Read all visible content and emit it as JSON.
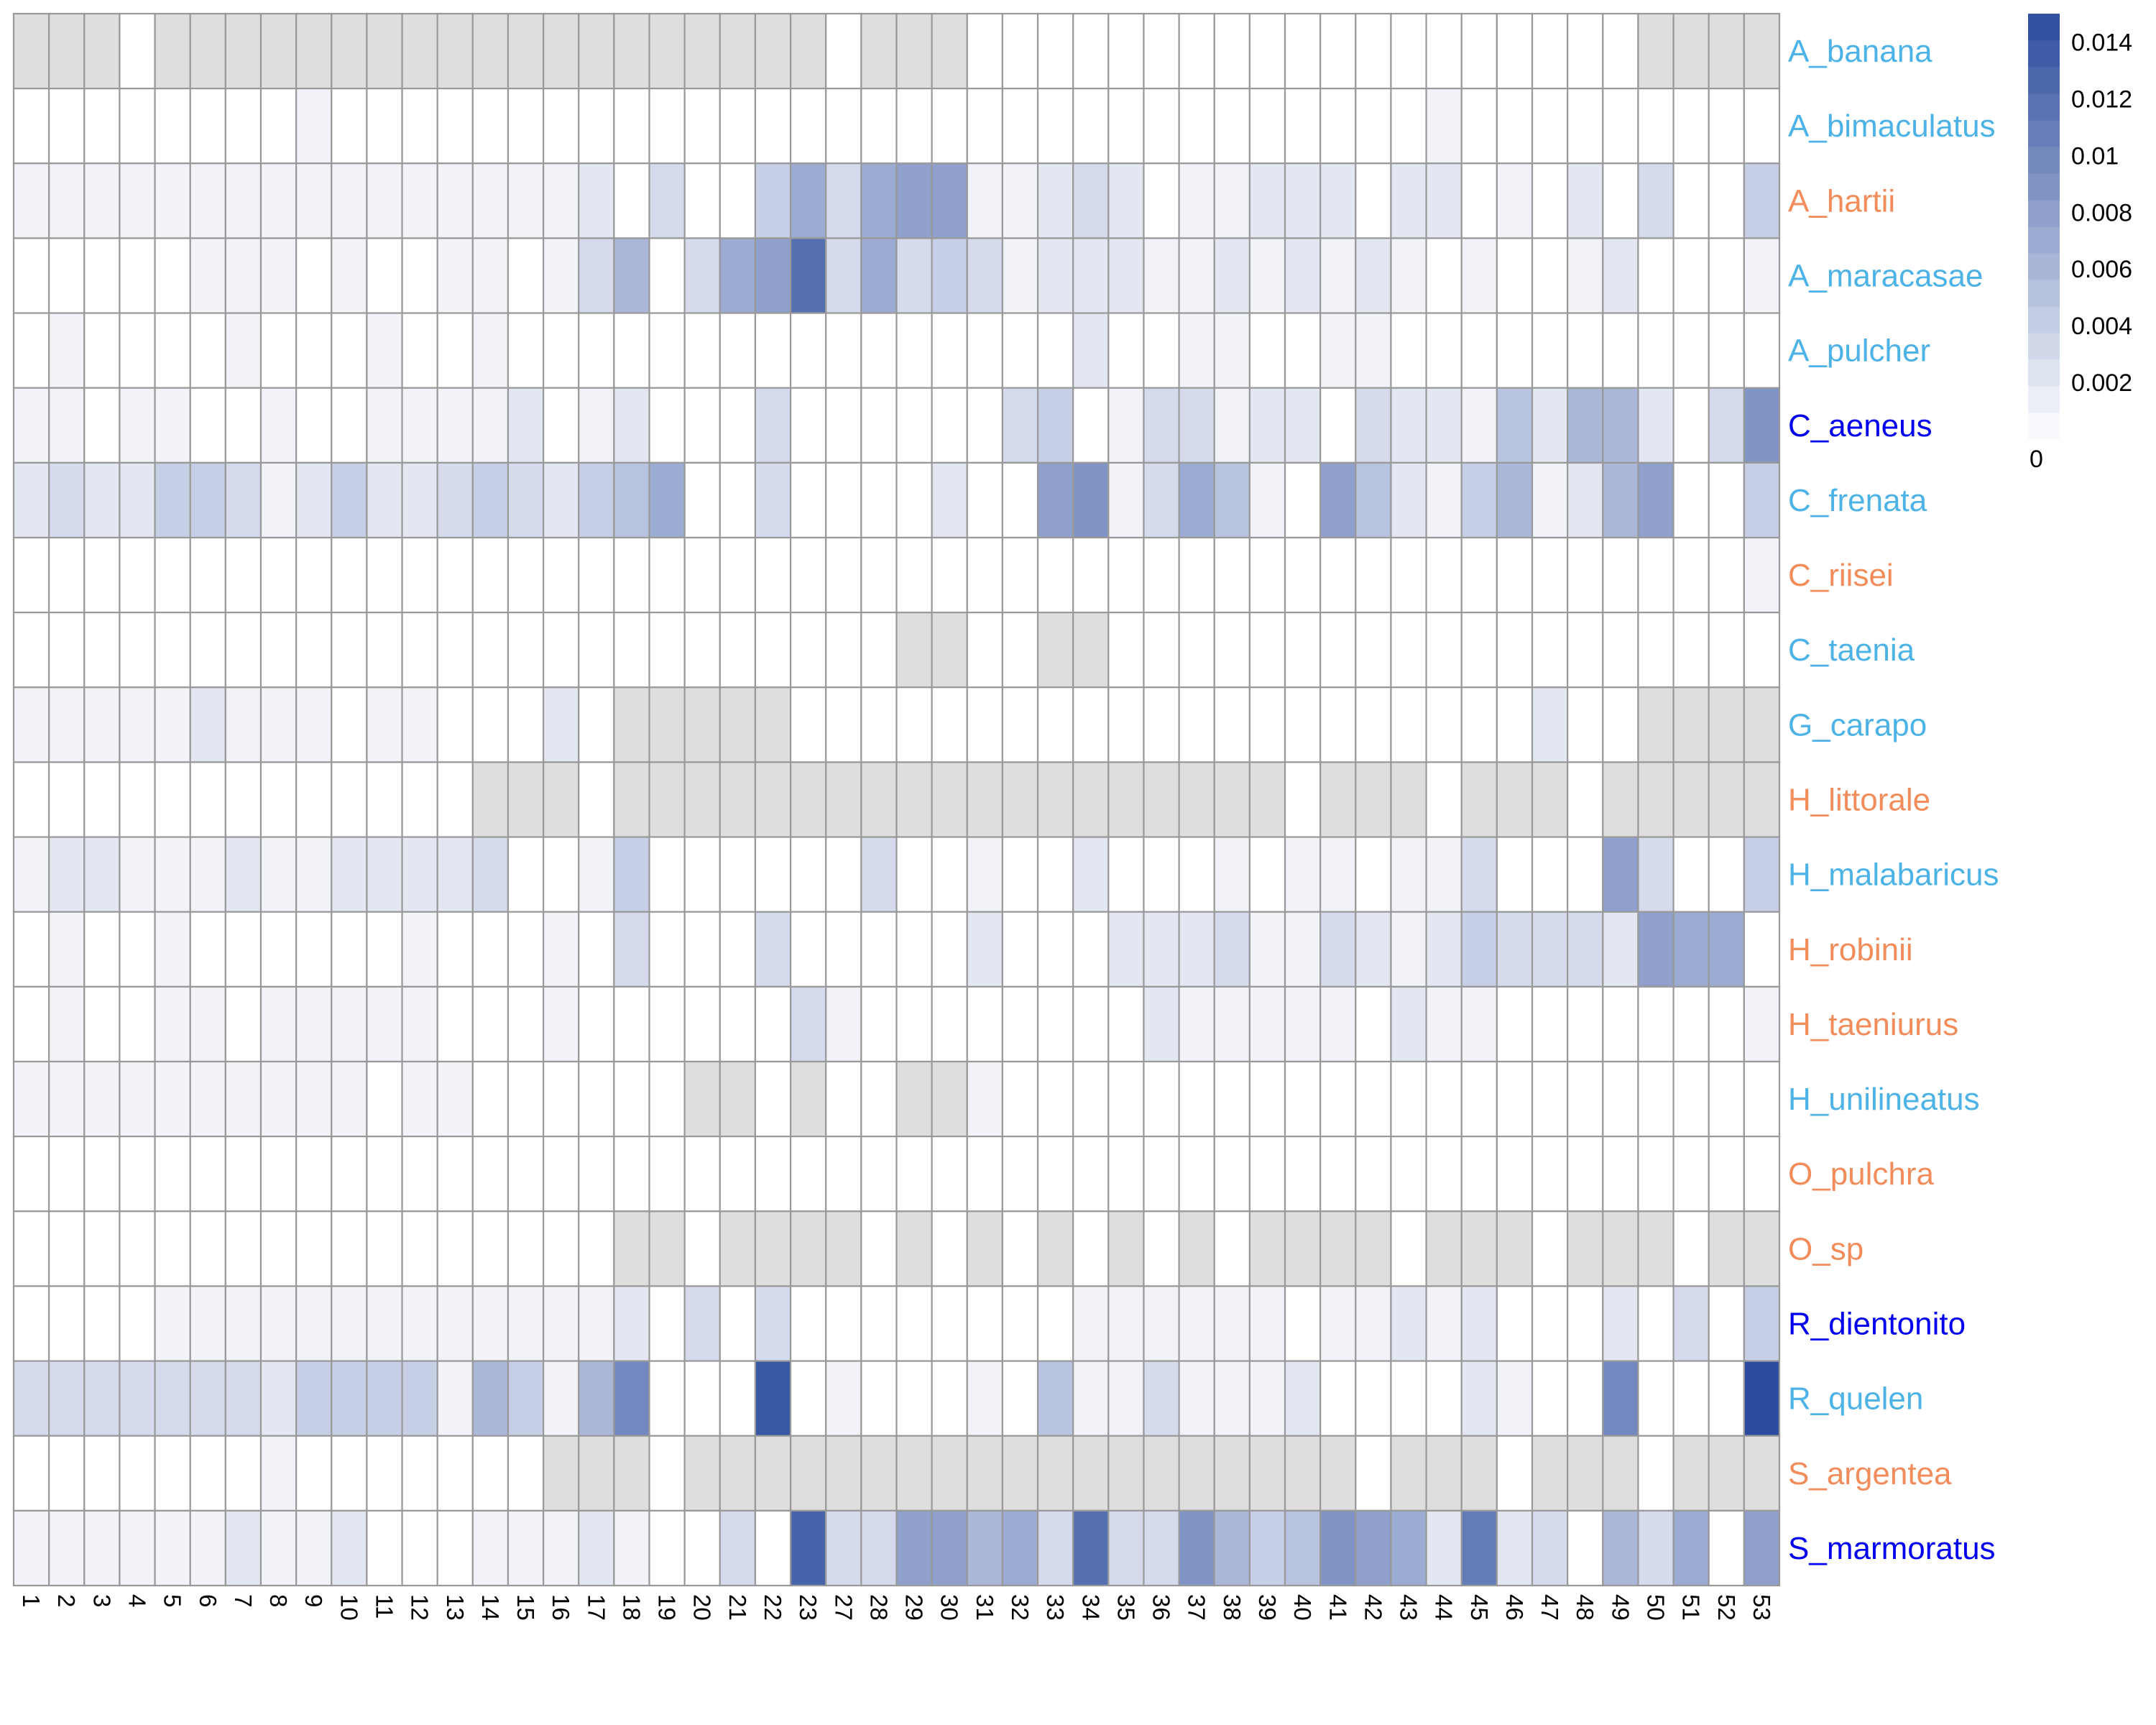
{
  "chart_data": {
    "type": "heatmap",
    "title": "",
    "xlabel": "",
    "ylabel": "",
    "columns": [
      "1",
      "2",
      "3",
      "4",
      "5",
      "6",
      "7",
      "8",
      "9",
      "10",
      "11",
      "12",
      "13",
      "14",
      "15",
      "16",
      "17",
      "18",
      "19",
      "20",
      "21",
      "22",
      "23",
      "27",
      "28",
      "29",
      "30",
      "31",
      "32",
      "33",
      "34",
      "35",
      "36",
      "37",
      "38",
      "39",
      "40",
      "41",
      "42",
      "43",
      "44",
      "45",
      "46",
      "47",
      "48",
      "49",
      "50",
      "51",
      "52",
      "53"
    ],
    "rows": [
      "A_banana",
      "A_bimaculatus",
      "A_hartii",
      "A_maracasae",
      "A_pulcher",
      "C_aeneus",
      "C_frenata",
      "C_riisei",
      "C_taenia",
      "G_carapo",
      "H_littorale",
      "H_malabaricus",
      "H_robinii",
      "H_taeniurus",
      "H_unilineatus",
      "O_pulchra",
      "O_sp",
      "R_dientonito",
      "R_quelen",
      "S_argentea",
      "S_marmoratus"
    ],
    "row_label_colors": [
      "#4db3e6",
      "#4db3e6",
      "#f28c5a",
      "#4db3e6",
      "#4db3e6",
      "#0000ee",
      "#4db3e6",
      "#f28c5a",
      "#4db3e6",
      "#4db3e6",
      "#f28c5a",
      "#4db3e6",
      "#f28c5a",
      "#f28c5a",
      "#4db3e6",
      "#f28c5a",
      "#f28c5a",
      "#0000ee",
      "#4db3e6",
      "#f28c5a",
      "#0000ee"
    ],
    "na_color": "#dedede",
    "grid_color": "#999999",
    "color_scale": {
      "min": 0,
      "max": 0.015,
      "low_color": "#ffffff",
      "high_color": "#2b4c9e",
      "ticks": [
        "0",
        "0.002",
        "0.004",
        "0.006",
        "0.008",
        "0.01",
        "0.012",
        "0.014"
      ],
      "tick_values": [
        0,
        0.002,
        0.004,
        0.006,
        0.008,
        0.01,
        0.012,
        0.014
      ]
    },
    "values": [
      [
        null,
        null,
        null,
        0,
        null,
        null,
        null,
        null,
        null,
        null,
        null,
        null,
        null,
        null,
        null,
        null,
        null,
        null,
        null,
        null,
        null,
        null,
        null,
        0,
        null,
        null,
        null,
        0,
        0,
        0,
        0,
        0,
        0,
        0,
        0,
        0,
        0,
        0,
        0,
        0,
        0,
        0,
        0,
        0,
        0,
        0,
        null,
        null,
        null,
        null
      ],
      [
        0,
        0,
        0,
        0,
        0,
        0,
        0,
        0,
        0.001,
        0,
        0,
        0,
        0,
        0,
        0,
        0,
        0,
        0,
        0,
        0,
        0,
        0,
        0,
        0,
        0,
        0,
        0,
        0,
        0,
        0,
        0,
        0,
        0,
        0,
        0,
        0,
        0,
        0,
        0,
        0,
        0.001,
        0,
        0,
        0,
        0,
        0,
        0,
        0,
        0,
        0
      ],
      [
        0.001,
        0.001,
        0.001,
        0.001,
        0.001,
        0.001,
        0.001,
        0.001,
        0.001,
        0.001,
        0.001,
        0.001,
        0.001,
        0.001,
        0.001,
        0.001,
        0.002,
        0,
        0.003,
        0,
        0,
        0.004,
        0.007,
        0.003,
        0.007,
        0.008,
        0.008,
        0.001,
        0.001,
        0.002,
        0.003,
        0.002,
        0,
        0.001,
        0.001,
        0.002,
        0.002,
        0.002,
        0,
        0.002,
        0.002,
        0,
        0.001,
        0,
        0.002,
        0,
        0.003,
        0,
        0,
        0.004
      ],
      [
        0,
        0,
        0,
        0,
        0,
        0.001,
        0.001,
        0.001,
        0,
        0.001,
        0,
        0,
        0.001,
        0.001,
        0,
        0.001,
        0.003,
        0.006,
        0,
        0.003,
        0.007,
        0.008,
        0.012,
        0.003,
        0.007,
        0.003,
        0.004,
        0.003,
        0.001,
        0.002,
        0.002,
        0.002,
        0.001,
        0.001,
        0.002,
        0.001,
        0.002,
        0.001,
        0.002,
        0.001,
        0,
        0.001,
        0,
        0,
        0.001,
        0.002,
        0,
        0,
        0,
        0.001
      ],
      [
        0,
        0.001,
        0,
        0,
        0,
        0,
        0.001,
        0,
        0,
        0,
        0.001,
        0,
        0,
        0.001,
        0,
        0,
        0,
        0,
        0,
        0,
        0,
        0,
        0,
        0,
        0,
        0,
        0,
        0,
        0,
        0,
        0.002,
        0,
        0,
        0.001,
        0.001,
        0,
        0,
        0.001,
        0.001,
        0,
        0,
        0,
        0,
        0,
        0,
        0,
        0,
        0,
        0,
        0
      ],
      [
        0.001,
        0.001,
        0,
        0.001,
        0.001,
        0,
        0,
        0.001,
        0,
        0,
        0.001,
        0.001,
        0.001,
        0.001,
        0.002,
        0,
        0.001,
        0.002,
        0,
        0,
        0,
        0.003,
        0,
        0,
        0,
        0,
        0,
        0,
        0.003,
        0.004,
        0,
        0.001,
        0.003,
        0.003,
        0.001,
        0.002,
        0.002,
        0,
        0.003,
        0.002,
        0.002,
        0.001,
        0.005,
        0.002,
        0.006,
        0.006,
        0.002,
        0,
        0.003,
        0.009
      ],
      [
        0.002,
        0.003,
        0.002,
        0.002,
        0.004,
        0.004,
        0.003,
        0.001,
        0.002,
        0.004,
        0.002,
        0.002,
        0.003,
        0.004,
        0.003,
        0.002,
        0.004,
        0.005,
        0.007,
        0,
        0,
        0.003,
        0,
        0,
        0,
        0,
        0.002,
        0,
        0,
        0.008,
        0.009,
        0.001,
        0.003,
        0.007,
        0.005,
        0.001,
        0,
        0.008,
        0.005,
        0.002,
        0.001,
        0.004,
        0.006,
        0.001,
        0.002,
        0.006,
        0.008,
        0,
        0,
        0.004
      ],
      [
        0,
        0,
        0,
        0,
        0,
        0,
        0,
        0,
        0,
        0,
        0,
        0,
        0,
        0,
        0,
        0,
        0,
        0,
        0,
        0,
        0,
        0,
        0,
        0,
        0,
        0,
        0,
        0,
        0,
        0,
        0,
        0,
        0,
        0,
        0,
        0,
        0,
        0,
        0,
        0,
        0,
        0,
        0,
        0,
        0,
        0,
        0,
        0,
        0,
        0.001
      ],
      [
        0,
        0,
        0,
        0,
        0,
        0,
        0,
        0,
        0,
        0,
        0,
        0,
        0,
        0,
        0,
        0,
        0,
        0,
        0,
        0,
        0,
        0,
        0,
        0,
        0,
        null,
        null,
        0,
        0,
        null,
        null,
        0,
        0,
        0,
        0,
        0,
        0,
        0,
        0,
        0,
        0,
        0,
        0,
        0,
        0,
        0,
        0,
        0,
        0,
        0
      ],
      [
        0.001,
        0.001,
        0.001,
        0.001,
        0.001,
        0.002,
        0.001,
        0.001,
        0.001,
        0,
        0.001,
        0.001,
        0,
        0,
        0,
        0.002,
        0,
        null,
        null,
        null,
        null,
        null,
        0,
        0,
        0,
        0,
        0,
        0,
        0,
        0,
        0,
        0,
        0,
        0,
        0,
        0,
        0,
        0,
        0,
        0,
        0,
        0,
        0,
        0.002,
        0,
        0,
        null,
        null,
        null,
        null
      ],
      [
        0,
        0,
        0,
        0,
        0,
        0,
        0,
        0,
        0,
        0,
        0,
        0,
        0,
        null,
        null,
        null,
        0,
        null,
        null,
        null,
        null,
        null,
        null,
        null,
        null,
        null,
        null,
        null,
        null,
        null,
        null,
        null,
        null,
        null,
        null,
        null,
        0,
        null,
        null,
        null,
        0,
        null,
        null,
        null,
        0,
        null,
        null,
        null,
        null,
        null
      ],
      [
        0.001,
        0.002,
        0.002,
        0.001,
        0.001,
        0.001,
        0.002,
        0.001,
        0.001,
        0.002,
        0.002,
        0.002,
        0.002,
        0.003,
        0,
        0,
        0.001,
        0.004,
        0,
        0,
        0,
        0,
        0,
        0,
        0.003,
        0,
        0,
        0.001,
        0,
        0,
        0.002,
        0,
        0,
        0,
        0.001,
        0,
        0.001,
        0.001,
        0,
        0.001,
        0.001,
        0.003,
        0,
        0,
        0,
        0.008,
        0.003,
        0,
        0,
        0.004
      ],
      [
        0,
        0.001,
        0,
        0,
        0.001,
        0,
        0,
        0,
        0,
        0,
        0,
        0.001,
        0,
        0,
        0,
        0.001,
        0,
        0.003,
        0,
        0,
        0,
        0.003,
        0,
        0,
        0,
        0,
        0,
        0.002,
        0,
        0,
        0,
        0.002,
        0.002,
        0.002,
        0.003,
        0.001,
        0.001,
        0.003,
        0.002,
        0.001,
        0.002,
        0.004,
        0.003,
        0.003,
        0.003,
        0.002,
        0.008,
        0.007,
        0.007,
        0
      ],
      [
        0,
        0.001,
        0,
        0,
        0.001,
        0.001,
        0,
        0.001,
        0.001,
        0.001,
        0.001,
        0.001,
        0,
        0,
        0,
        0.001,
        0,
        0,
        0,
        0,
        0,
        0,
        0.003,
        0.001,
        0,
        0,
        0,
        0,
        0,
        0,
        0,
        0,
        0.002,
        0.001,
        0.001,
        0.001,
        0.001,
        0.001,
        0,
        0.002,
        0.001,
        0.001,
        0,
        0,
        0,
        0,
        0,
        0,
        0,
        0.001
      ],
      [
        0.001,
        0.001,
        0.001,
        0.001,
        0.001,
        0.001,
        0.001,
        0.001,
        0.001,
        0.001,
        0,
        0.001,
        0.001,
        0,
        0,
        0,
        0,
        0,
        0,
        null,
        null,
        0,
        null,
        0,
        0,
        null,
        null,
        0.001,
        0,
        0,
        0,
        0,
        0,
        0,
        0,
        0,
        0,
        0,
        0,
        0,
        0,
        0,
        0,
        0,
        0,
        0,
        0,
        0,
        0,
        0
      ],
      [
        0,
        0,
        0,
        0,
        0,
        0,
        0,
        0,
        0,
        0,
        0,
        0,
        0,
        0,
        0,
        0,
        0,
        0,
        0,
        0,
        0,
        0,
        0,
        0,
        0,
        0,
        0,
        0,
        0,
        0,
        0,
        0,
        0,
        0,
        0,
        0,
        0,
        0,
        0,
        0,
        0,
        0,
        0,
        0,
        0,
        0,
        0,
        0,
        0,
        0
      ],
      [
        0,
        0,
        0,
        0,
        0,
        0,
        0,
        0,
        0,
        0,
        0,
        0,
        0,
        0,
        0,
        0,
        0,
        null,
        null,
        0,
        null,
        null,
        null,
        null,
        0,
        null,
        0,
        null,
        0,
        null,
        0,
        null,
        0,
        null,
        0,
        null,
        null,
        null,
        null,
        0,
        null,
        null,
        null,
        0,
        null,
        null,
        null,
        0,
        null,
        null
      ],
      [
        0,
        0,
        0,
        0,
        0.001,
        0.001,
        0.001,
        0.001,
        0.001,
        0.001,
        0.001,
        0.001,
        0.001,
        0.001,
        0.001,
        0.001,
        0.001,
        0.002,
        0,
        0.003,
        0,
        0.003,
        0,
        0,
        0,
        0,
        0,
        0,
        0,
        0,
        0.001,
        0.001,
        0.001,
        0.001,
        0.001,
        0.001,
        0,
        0.001,
        0.001,
        0.002,
        0.001,
        0.002,
        0,
        0,
        0,
        0.002,
        0,
        0.003,
        0,
        0.004
      ],
      [
        0.003,
        0.003,
        0.003,
        0.003,
        0.003,
        0.003,
        0.003,
        0.002,
        0.004,
        0.004,
        0.004,
        0.004,
        0.001,
        0.006,
        0.004,
        0.001,
        0.006,
        0.01,
        0,
        0,
        0,
        0.014,
        0,
        0.001,
        0,
        0,
        0,
        0.001,
        0,
        0.005,
        0.001,
        0.001,
        0.003,
        0.001,
        0.001,
        0.001,
        0.002,
        0,
        0,
        0,
        0,
        0.002,
        0.001,
        0,
        0,
        0.01,
        0,
        0,
        0,
        0.015
      ],
      [
        0,
        0,
        0,
        0,
        0,
        0,
        0,
        0.001,
        0,
        0,
        0,
        0,
        0,
        0,
        0,
        null,
        null,
        null,
        0,
        null,
        null,
        null,
        null,
        null,
        null,
        null,
        null,
        null,
        null,
        null,
        null,
        null,
        null,
        null,
        null,
        null,
        null,
        null,
        0,
        null,
        null,
        null,
        0,
        null,
        null,
        null,
        0,
        null,
        null,
        null
      ],
      [
        0.001,
        0.001,
        0.001,
        0.001,
        0.001,
        0.001,
        0.002,
        0.001,
        0.001,
        0.002,
        0,
        0,
        0,
        0.001,
        0.001,
        0.001,
        0.002,
        0.001,
        0,
        0,
        0.003,
        0,
        0.013,
        0.003,
        0.003,
        0.008,
        0.008,
        0.006,
        0.007,
        0.003,
        0.012,
        0.003,
        0.003,
        0.009,
        0.006,
        0.004,
        0.005,
        0.009,
        0.008,
        0.007,
        0.002,
        0.011,
        0.002,
        0.003,
        0,
        0.006,
        0.003,
        0.007,
        0,
        0.008
      ]
    ]
  }
}
